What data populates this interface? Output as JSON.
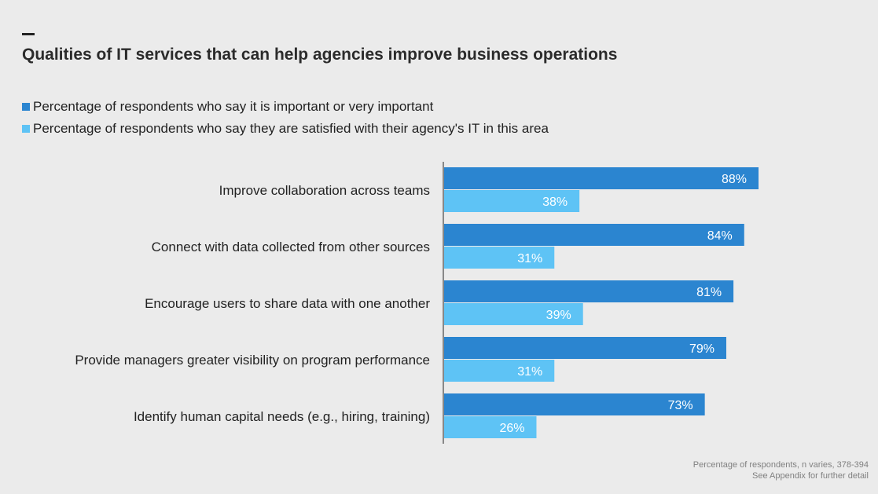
{
  "header": {
    "dash": "—",
    "title": "Qualities of IT services that can help agencies improve business operations"
  },
  "colors": {
    "important": "#2b85d0",
    "satisfied": "#5ec3f5",
    "axis": "#888888",
    "background": "#ebebeb"
  },
  "chart_data": {
    "type": "bar",
    "orientation": "horizontal",
    "title": "Qualities of IT services that can help agencies improve business operations",
    "categories": [
      "Improve collaboration across teams",
      "Connect with data collected from other sources",
      "Encourage users to share data with one another",
      "Provide managers greater visibility on program performance",
      "Identify human capital needs (e.g., hiring, training)"
    ],
    "series": [
      {
        "name": "Percentage of respondents who say it is important or very important",
        "values": [
          88,
          84,
          81,
          79,
          73
        ],
        "labels": [
          "88%",
          "84%",
          "81%",
          "79%",
          "73%"
        ]
      },
      {
        "name": "Percentage of respondents who say they are satisfied with their agency's IT in this area",
        "values": [
          38,
          31,
          39,
          31,
          26
        ],
        "labels": [
          "38%",
          "31%",
          "39%",
          "31%",
          "26%"
        ]
      }
    ],
    "xlim": [
      0,
      100
    ],
    "unit": "%",
    "legend_position": "top-left",
    "grid": false
  },
  "footnote": {
    "line1": "Percentage of respondents, n varies, 378-394",
    "line2": "See Appendix for further detail"
  }
}
